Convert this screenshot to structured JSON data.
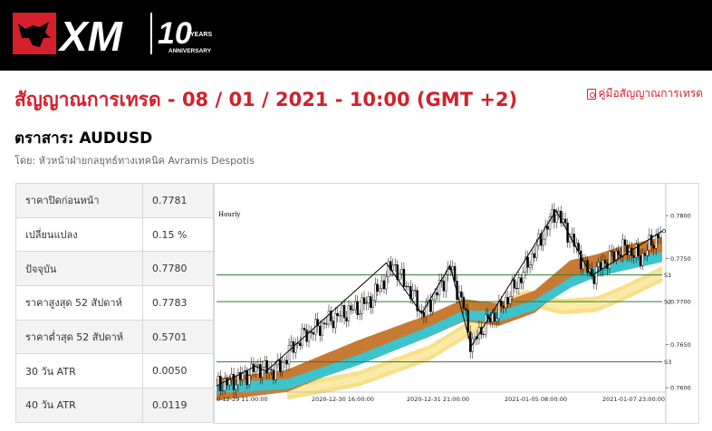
{
  "header": {
    "logo_text": "XM",
    "logo_badge": "10",
    "logo_badge_sub": "YEARS",
    "logo_caption": "ANNIVERSARY"
  },
  "page": {
    "title": "สัญญาณการเทรด - 08 / 01 / 2021 - 10:00 (GMT +2)",
    "guide_link": "คู่มือสัญญาณการเทรด",
    "instrument": "ตราสาร: AUDUSD",
    "author": "โดย: หัวหน้าฝ่ายกลยุทธ์ทางเทคนิค Avramis Despotis"
  },
  "stats": [
    {
      "label": "ราคาปิดก่อนหน้า",
      "value": "0.7781"
    },
    {
      "label": "เปลี่ยนแปลง",
      "value": "0.15 %"
    },
    {
      "label": "ปัจจุบัน",
      "value": "0.7780"
    },
    {
      "label": "ราคาสูงสุด 52 สัปดาห์",
      "value": "0.7783"
    },
    {
      "label": "ราคาต่ำสุด 52 สัปดาห์",
      "value": "0.5701"
    },
    {
      "label": "30 วัน ATR",
      "value": "0.0050"
    },
    {
      "label": "40 วัน ATR",
      "value": "0.0119"
    }
  ],
  "chart_data": {
    "type": "candlestick",
    "timeframe_label": "Hourly",
    "ylim": [
      0.7597,
      0.7818
    ],
    "y_ticks": [
      "0.7800",
      "0.7750",
      "0.7700",
      "0.7650",
      "0.7600"
    ],
    "y_tick_values": [
      0.78,
      0.775,
      0.77,
      0.765,
      0.76
    ],
    "x_tick_labels": [
      "0-12-29 11:00:00",
      "2020-12-30 16:00:00",
      "2020-12-31 21:00:00",
      "2021-01-05 08:00:00",
      "2021-01-07 23:00:00"
    ],
    "support_levels": [
      {
        "name": "S1",
        "value": 0.7731
      },
      {
        "name": "S2",
        "value": 0.77
      },
      {
        "name": "S3",
        "value": 0.763
      }
    ],
    "price_path": [
      [
        0,
        0.7602
      ],
      [
        10,
        0.7608
      ],
      [
        18,
        0.7616
      ],
      [
        24,
        0.7625
      ],
      [
        30,
        0.7619
      ],
      [
        36,
        0.7624
      ],
      [
        42,
        0.7645
      ],
      [
        50,
        0.7662
      ],
      [
        56,
        0.7668
      ],
      [
        62,
        0.7676
      ],
      [
        68,
        0.7683
      ],
      [
        74,
        0.7688
      ],
      [
        80,
        0.7693
      ],
      [
        86,
        0.77
      ],
      [
        92,
        0.7715
      ],
      [
        96,
        0.773
      ],
      [
        100,
        0.7745
      ],
      [
        104,
        0.7728
      ],
      [
        108,
        0.7718
      ],
      [
        112,
        0.7704
      ],
      [
        116,
        0.7686
      ],
      [
        120,
        0.7695
      ],
      [
        124,
        0.771
      ],
      [
        128,
        0.7722
      ],
      [
        132,
        0.7742
      ],
      [
        136,
        0.7715
      ],
      [
        140,
        0.7693
      ],
      [
        144,
        0.7648
      ],
      [
        148,
        0.7662
      ],
      [
        152,
        0.7675
      ],
      [
        156,
        0.7682
      ],
      [
        160,
        0.769
      ],
      [
        164,
        0.7703
      ],
      [
        168,
        0.7715
      ],
      [
        172,
        0.7728
      ],
      [
        176,
        0.7744
      ],
      [
        180,
        0.7758
      ],
      [
        184,
        0.7775
      ],
      [
        188,
        0.7792
      ],
      [
        192,
        0.7806
      ],
      [
        196,
        0.779
      ],
      [
        200,
        0.7776
      ],
      [
        204,
        0.776
      ],
      [
        208,
        0.7742
      ],
      [
        212,
        0.773
      ],
      [
        216,
        0.7738
      ],
      [
        220,
        0.7748
      ],
      [
        224,
        0.7752
      ],
      [
        228,
        0.776
      ],
      [
        232,
        0.7762
      ],
      [
        236,
        0.7756
      ],
      [
        240,
        0.775
      ],
      [
        244,
        0.7763
      ],
      [
        248,
        0.7773
      ],
      [
        252,
        0.7782
      ]
    ],
    "bands": {
      "brown_mid": [
        [
          0,
          0.7598
        ],
        [
          40,
          0.7608
        ],
        [
          80,
          0.7642
        ],
        [
          120,
          0.7672
        ],
        [
          140,
          0.769
        ],
        [
          160,
          0.7685
        ],
        [
          180,
          0.77
        ],
        [
          200,
          0.7735
        ],
        [
          215,
          0.7742
        ],
        [
          230,
          0.7752
        ],
        [
          252,
          0.7762
        ]
      ],
      "cyan_mid": [
        [
          0,
          0.76
        ],
        [
          40,
          0.7604
        ],
        [
          80,
          0.7632
        ],
        [
          120,
          0.7665
        ],
        [
          140,
          0.7684
        ],
        [
          160,
          0.7683
        ],
        [
          180,
          0.7696
        ],
        [
          200,
          0.7722
        ],
        [
          215,
          0.7735
        ],
        [
          230,
          0.7742
        ],
        [
          252,
          0.7752
        ]
      ],
      "yellow_mid": [
        [
          40,
          0.7595
        ],
        [
          80,
          0.761
        ],
        [
          120,
          0.764
        ],
        [
          140,
          0.7665
        ],
        [
          160,
          0.769
        ],
        [
          175,
          0.7705
        ],
        [
          195,
          0.7694
        ],
        [
          215,
          0.7697
        ],
        [
          230,
          0.771
        ],
        [
          252,
          0.7732
        ]
      ]
    }
  }
}
